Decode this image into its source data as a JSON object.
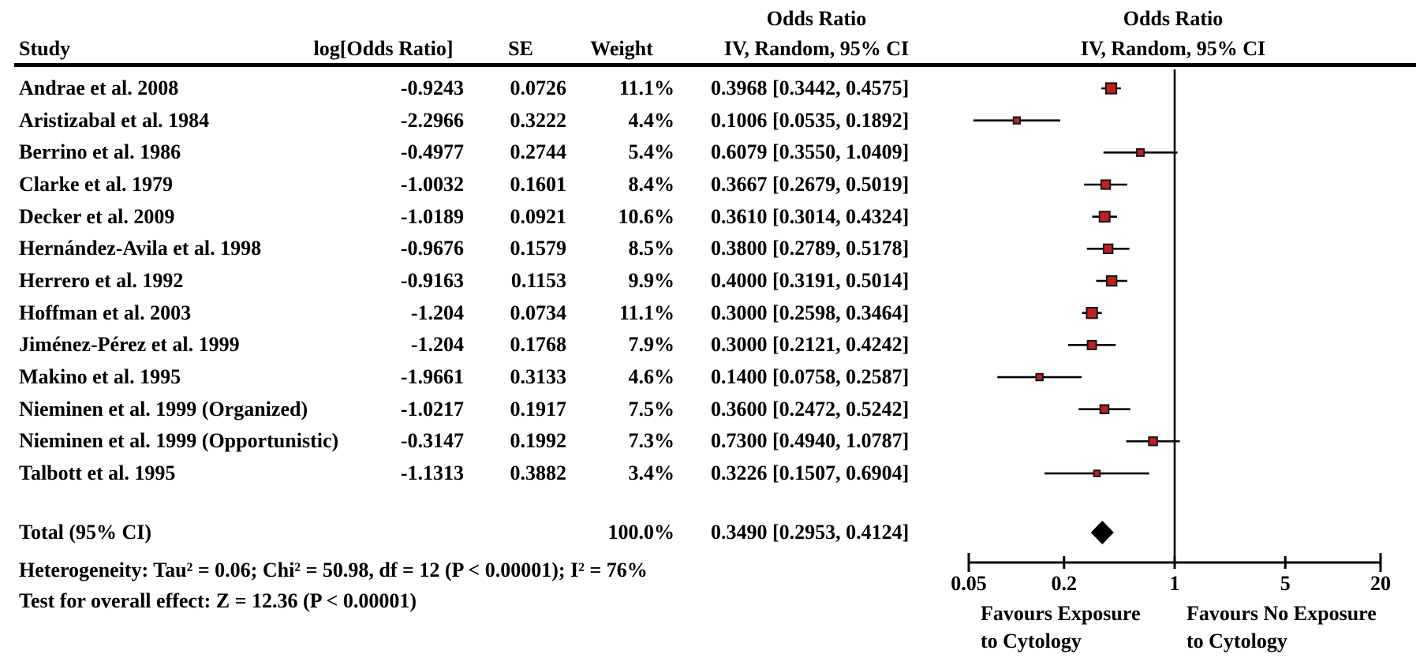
{
  "header": {
    "study": "Study",
    "log_or": "log[Odds Ratio]",
    "se": "SE",
    "weight": "Weight",
    "or_group_text": "Odds Ratio",
    "or_sub_text": "IV, Random, 95% CI",
    "or_group_plot": "Odds Ratio",
    "or_sub_plot": "IV, Random, 95% CI"
  },
  "chart_data": {
    "type": "forest",
    "effect_measure": "Odds Ratio",
    "model": "IV, Random, 95% CI",
    "x_axis": {
      "scale": "log",
      "min": 0.05,
      "max": 20,
      "tick_values": [
        0.05,
        0.2,
        1,
        5,
        20
      ],
      "tick_labels": [
        "0.05",
        "0.2",
        "1",
        "5",
        "20"
      ],
      "null_line": 1
    },
    "studies": [
      {
        "name": "Andrae et al. 2008",
        "log_or": "-0.9243",
        "se": "0.0726",
        "weight_label": "11.1%",
        "weight": 11.1,
        "or": 0.3968,
        "ci_low": 0.3442,
        "ci_high": 0.4575,
        "ci_text": "0.3968 [0.3442, 0.4575]"
      },
      {
        "name": "Aristizabal et al. 1984",
        "log_or": "-2.2966",
        "se": "0.3222",
        "weight_label": "4.4%",
        "weight": 4.4,
        "or": 0.1006,
        "ci_low": 0.0535,
        "ci_high": 0.1892,
        "ci_text": "0.1006 [0.0535, 0.1892]"
      },
      {
        "name": "Berrino et al. 1986",
        "log_or": "-0.4977",
        "se": "0.2744",
        "weight_label": "5.4%",
        "weight": 5.4,
        "or": 0.6079,
        "ci_low": 0.355,
        "ci_high": 1.0409,
        "ci_text": "0.6079 [0.3550, 1.0409]"
      },
      {
        "name": "Clarke et al. 1979",
        "log_or": "-1.0032",
        "se": "0.1601",
        "weight_label": "8.4%",
        "weight": 8.4,
        "or": 0.3667,
        "ci_low": 0.2679,
        "ci_high": 0.5019,
        "ci_text": "0.3667 [0.2679, 0.5019]"
      },
      {
        "name": "Decker et al. 2009",
        "log_or": "-1.0189",
        "se": "0.0921",
        "weight_label": "10.6%",
        "weight": 10.6,
        "or": 0.361,
        "ci_low": 0.3014,
        "ci_high": 0.4324,
        "ci_text": "0.3610 [0.3014, 0.4324]"
      },
      {
        "name": "Hernández-Avila et al. 1998",
        "log_or": "-0.9676",
        "se": "0.1579",
        "weight_label": "8.5%",
        "weight": 8.5,
        "or": 0.38,
        "ci_low": 0.2789,
        "ci_high": 0.5178,
        "ci_text": "0.3800 [0.2789, 0.5178]"
      },
      {
        "name": "Herrero et al. 1992",
        "log_or": "-0.9163",
        "se": "0.1153",
        "weight_label": "9.9%",
        "weight": 9.9,
        "or": 0.4,
        "ci_low": 0.3191,
        "ci_high": 0.5014,
        "ci_text": "0.4000 [0.3191, 0.5014]"
      },
      {
        "name": "Hoffman et al. 2003",
        "log_or": "-1.204",
        "se": "0.0734",
        "weight_label": "11.1%",
        "weight": 11.1,
        "or": 0.3,
        "ci_low": 0.2598,
        "ci_high": 0.3464,
        "ci_text": "0.3000 [0.2598, 0.3464]"
      },
      {
        "name": "Jiménez-Pérez et al. 1999",
        "log_or": "-1.204",
        "se": "0.1768",
        "weight_label": "7.9%",
        "weight": 7.9,
        "or": 0.3,
        "ci_low": 0.2121,
        "ci_high": 0.4242,
        "ci_text": "0.3000 [0.2121, 0.4242]"
      },
      {
        "name": "Makino et al. 1995",
        "log_or": "-1.9661",
        "se": "0.3133",
        "weight_label": "4.6%",
        "weight": 4.6,
        "or": 0.14,
        "ci_low": 0.0758,
        "ci_high": 0.2587,
        "ci_text": "0.1400 [0.0758, 0.2587]"
      },
      {
        "name": "Nieminen et al. 1999 (Organized)",
        "log_or": "-1.0217",
        "se": "0.1917",
        "weight_label": "7.5%",
        "weight": 7.5,
        "or": 0.36,
        "ci_low": 0.2472,
        "ci_high": 0.5242,
        "ci_text": "0.3600 [0.2472, 0.5242]"
      },
      {
        "name": "Nieminen et al. 1999 (Opportunistic)",
        "log_or": "-0.3147",
        "se": "0.1992",
        "weight_label": "7.3%",
        "weight": 7.3,
        "or": 0.73,
        "ci_low": 0.494,
        "ci_high": 1.0787,
        "ci_text": "0.7300 [0.4940, 1.0787]"
      },
      {
        "name": "Talbott et al. 1995",
        "log_or": "-1.1313",
        "se": "0.3882",
        "weight_label": "3.4%",
        "weight": 3.4,
        "or": 0.3226,
        "ci_low": 0.1507,
        "ci_high": 0.6904,
        "ci_text": "0.3226 [0.1507, 0.6904]"
      }
    ],
    "total": {
      "label": "Total (95% CI)",
      "weight_label": "100.0%",
      "or": 0.349,
      "ci_low": 0.2953,
      "ci_high": 0.4124,
      "ci_text": "0.3490 [0.2953, 0.4124]"
    },
    "heterogeneity_text": "Heterogeneity: Tau² = 0.06; Chi² = 50.98, df = 12 (P < 0.00001); I² = 76%",
    "overall_effect_text": "Test for overall effect: Z = 12.36 (P < 0.00001)",
    "favours_left": [
      "Favours Exposure",
      "to Cytology"
    ],
    "favours_right": [
      "Favours No Exposure",
      "to Cytology"
    ],
    "colors": {
      "marker_fill": "#c0201f",
      "marker_border": "#161616",
      "line": "#000000",
      "diamond": "#000000"
    }
  }
}
